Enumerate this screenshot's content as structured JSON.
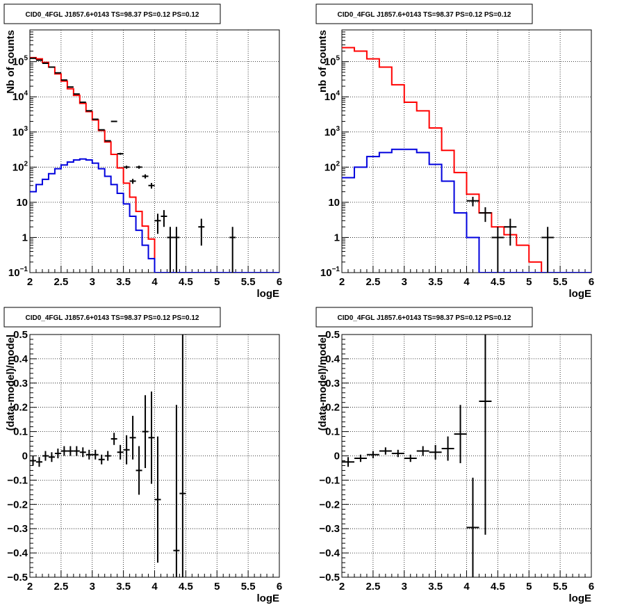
{
  "chart_data": [
    {
      "type": "line",
      "title": "CID0_4FGL J1857.6+0143 TS=98.37 PS=0.12 PS=0.12",
      "xlabel": "logE",
      "ylabel": "Nb of counts",
      "xlim": [
        2,
        6
      ],
      "ylim": [
        0.1,
        800000
      ],
      "yscale": "log",
      "grid": true,
      "xticks": [
        "2",
        "2.5",
        "3",
        "3.5",
        "4",
        "4.5",
        "5",
        "5.5",
        "6"
      ],
      "yticks": [
        {
          "v": 0.1,
          "label": "10",
          "sup": "−1"
        },
        {
          "v": 1,
          "label": "1",
          "sup": ""
        },
        {
          "v": 10,
          "label": "10",
          "sup": ""
        },
        {
          "v": 100,
          "label": "10",
          "sup": "2"
        },
        {
          "v": 1000,
          "label": "10",
          "sup": "3"
        },
        {
          "v": 10000,
          "label": "10",
          "sup": "4"
        },
        {
          "v": 100000,
          "label": "10",
          "sup": "5"
        }
      ],
      "bin_edges": [
        2.0,
        2.1,
        2.2,
        2.3,
        2.4,
        2.5,
        2.6,
        2.7,
        2.8,
        2.9,
        3.0,
        3.1,
        3.2,
        3.3,
        3.4,
        3.5,
        3.6,
        3.7,
        3.8,
        3.9,
        4.0,
        4.1,
        4.2,
        4.3,
        4.4,
        4.5,
        4.6,
        4.7,
        4.8,
        4.9,
        5.0,
        5.1,
        5.2,
        5.3,
        5.4,
        5.5,
        5.6,
        5.7,
        5.8,
        5.9,
        6.0
      ],
      "series": [
        {
          "role": "total",
          "color": "#ff0000",
          "values": [
            130000,
            120000,
            95000,
            70000,
            45000,
            28000,
            17000,
            11000,
            6500,
            3800,
            2200,
            1100,
            520,
            230,
            95,
            35,
            14,
            5.5,
            2.1,
            0.9
          ]
        },
        {
          "role": "component",
          "color": "#0000dd",
          "values": [
            20,
            32,
            45,
            65,
            90,
            115,
            140,
            160,
            170,
            160,
            130,
            90,
            55,
            32,
            18,
            9,
            4,
            1.6,
            0.6,
            0.25
          ]
        }
      ],
      "points": [
        {
          "x": 2.05,
          "y": 125000
        },
        {
          "x": 2.15,
          "y": 110000
        },
        {
          "x": 2.25,
          "y": 90000
        },
        {
          "x": 2.35,
          "y": 70000
        },
        {
          "x": 2.45,
          "y": 48000
        },
        {
          "x": 2.55,
          "y": 30000
        },
        {
          "x": 2.65,
          "y": 19000
        },
        {
          "x": 2.75,
          "y": 12000
        },
        {
          "x": 2.85,
          "y": 7000
        },
        {
          "x": 2.95,
          "y": 4000
        },
        {
          "x": 3.05,
          "y": 2300
        },
        {
          "x": 3.15,
          "y": 1150
        },
        {
          "x": 3.25,
          "y": 560
        },
        {
          "x": 3.35,
          "y": 2000
        },
        {
          "x": 3.45,
          "y": 240
        },
        {
          "x": 3.55,
          "y": 100
        },
        {
          "x": 3.65,
          "y": 40
        },
        {
          "x": 3.75,
          "y": 100
        },
        {
          "x": 3.85,
          "y": 55
        },
        {
          "x": 3.95,
          "y": 30
        },
        {
          "x": 4.05,
          "y": 3
        },
        {
          "x": 4.15,
          "y": 4
        },
        {
          "x": 4.25,
          "y": 1
        },
        {
          "x": 4.35,
          "y": 1
        },
        {
          "x": 4.75,
          "y": 2
        },
        {
          "x": 5.25,
          "y": 1
        }
      ],
      "ptxerr": 0.05
    },
    {
      "type": "line",
      "title": "CID0_4FGL J1857.6+0143 TS=98.37 PS=0.12 PS=0.12",
      "xlabel": "logE",
      "ylabel": "nb of counts",
      "xlim": [
        2,
        6
      ],
      "ylim": [
        0.1,
        800000
      ],
      "yscale": "log",
      "grid": true,
      "xticks": [
        "2",
        "2.5",
        "3",
        "3.5",
        "4",
        "4.5",
        "5",
        "5.5",
        "6"
      ],
      "yticks": [
        {
          "v": 0.1,
          "label": "10",
          "sup": "−1"
        },
        {
          "v": 1,
          "label": "1",
          "sup": ""
        },
        {
          "v": 10,
          "label": "10",
          "sup": ""
        },
        {
          "v": 100,
          "label": "10",
          "sup": "2"
        },
        {
          "v": 1000,
          "label": "10",
          "sup": "3"
        },
        {
          "v": 10000,
          "label": "10",
          "sup": "4"
        },
        {
          "v": 100000,
          "label": "10",
          "sup": "5"
        }
      ],
      "bin_edges": [
        2.0,
        2.2,
        2.4,
        2.6,
        2.8,
        3.0,
        3.2,
        3.4,
        3.6,
        3.8,
        4.0,
        4.2,
        4.4,
        4.6,
        4.8,
        5.0,
        5.2,
        5.4,
        5.6,
        5.8,
        6.0
      ],
      "series": [
        {
          "role": "total",
          "color": "#ff0000",
          "values": [
            250000,
            200000,
            120000,
            70000,
            22000,
            7000,
            4000,
            1300,
            300,
            70,
            17,
            5,
            2,
            1.2,
            0.6,
            0.2,
            0.1
          ]
        },
        {
          "role": "component",
          "color": "#0000dd",
          "values": [
            50,
            100,
            200,
            260,
            320,
            320,
            260,
            120,
            40,
            5,
            1,
            0.1
          ]
        }
      ],
      "points": [
        {
          "x": 4.1,
          "y": 11
        },
        {
          "x": 4.3,
          "y": 5
        },
        {
          "x": 4.5,
          "y": 1
        },
        {
          "x": 4.7,
          "y": 2
        },
        {
          "x": 5.3,
          "y": 1
        }
      ],
      "ptxerr": 0.1
    },
    {
      "type": "scatter",
      "title": "CID0_4FGL J1857.6+0143 TS=98.37 PS=0.12 PS=0.12",
      "xlabel": "logE",
      "ylabel": "(data-model)/model",
      "xlim": [
        2,
        6
      ],
      "ylim": [
        -0.5,
        0.5
      ],
      "yscale": "linear",
      "grid": true,
      "xticks": [
        "2",
        "2.5",
        "3",
        "3.5",
        "4",
        "4.5",
        "5",
        "5.5",
        "6"
      ],
      "yticks": [
        {
          "v": -0.5,
          "label": "−0.5",
          "sup": ""
        },
        {
          "v": -0.4,
          "label": "−0.4",
          "sup": ""
        },
        {
          "v": -0.3,
          "label": "−0.3",
          "sup": ""
        },
        {
          "v": -0.2,
          "label": "−0.2",
          "sup": ""
        },
        {
          "v": -0.1,
          "label": "−0.1",
          "sup": ""
        },
        {
          "v": 0,
          "label": "0",
          "sup": ""
        },
        {
          "v": 0.1,
          "label": "0.1",
          "sup": ""
        },
        {
          "v": 0.2,
          "label": "0.2",
          "sup": ""
        },
        {
          "v": 0.3,
          "label": "0.3",
          "sup": ""
        },
        {
          "v": 0.4,
          "label": "0.4",
          "sup": ""
        },
        {
          "v": 0.5,
          "label": "0.5",
          "sup": ""
        }
      ],
      "points": [
        {
          "x": 2.05,
          "y": -0.02,
          "e": 0.02
        },
        {
          "x": 2.15,
          "y": -0.025,
          "e": 0.02
        },
        {
          "x": 2.25,
          "y": 0.0,
          "e": 0.02
        },
        {
          "x": 2.35,
          "y": -0.005,
          "e": 0.02
        },
        {
          "x": 2.45,
          "y": 0.01,
          "e": 0.02
        },
        {
          "x": 2.55,
          "y": 0.02,
          "e": 0.02
        },
        {
          "x": 2.65,
          "y": 0.02,
          "e": 0.02
        },
        {
          "x": 2.75,
          "y": 0.02,
          "e": 0.02
        },
        {
          "x": 2.85,
          "y": 0.015,
          "e": 0.02
        },
        {
          "x": 2.95,
          "y": 0.005,
          "e": 0.02
        },
        {
          "x": 3.05,
          "y": 0.005,
          "e": 0.02
        },
        {
          "x": 3.15,
          "y": -0.015,
          "e": 0.02
        },
        {
          "x": 3.25,
          "y": 0.0,
          "e": 0.02
        },
        {
          "x": 3.35,
          "y": 0.07,
          "e": 0.025
        },
        {
          "x": 3.45,
          "y": 0.015,
          "e": 0.03
        },
        {
          "x": 3.55,
          "y": 0.025,
          "e": 0.06
        },
        {
          "x": 3.65,
          "y": 0.075,
          "e": 0.09
        },
        {
          "x": 3.75,
          "y": -0.06,
          "e": 0.1
        },
        {
          "x": 3.85,
          "y": 0.1,
          "e": 0.15
        },
        {
          "x": 3.95,
          "y": 0.075,
          "e": 0.19
        },
        {
          "x": 4.05,
          "y": -0.18,
          "e": 0.26
        },
        {
          "x": 4.35,
          "y": -0.39,
          "e": 0.6
        },
        {
          "x": 4.45,
          "y": -0.155,
          "e": 0.66
        }
      ],
      "ptxerr": 0.05
    },
    {
      "type": "scatter",
      "title": "CID0_4FGL J1857.6+0143 TS=98.37 PS=0.12 PS=0.12",
      "xlabel": "logE",
      "ylabel": "(data-model)/model",
      "xlim": [
        2,
        6
      ],
      "ylim": [
        -0.5,
        0.5
      ],
      "yscale": "linear",
      "grid": true,
      "xticks": [
        "2",
        "2.5",
        "3",
        "3.5",
        "4",
        "4.5",
        "5",
        "5.5",
        "6"
      ],
      "yticks": [
        {
          "v": -0.5,
          "label": "−0.5",
          "sup": ""
        },
        {
          "v": -0.4,
          "label": "−0.4",
          "sup": ""
        },
        {
          "v": -0.3,
          "label": "−0.3",
          "sup": ""
        },
        {
          "v": -0.2,
          "label": "−0.2",
          "sup": ""
        },
        {
          "v": -0.1,
          "label": "−0.1",
          "sup": ""
        },
        {
          "v": 0,
          "label": "0",
          "sup": ""
        },
        {
          "v": 0.1,
          "label": "0.1",
          "sup": ""
        },
        {
          "v": 0.2,
          "label": "0.2",
          "sup": ""
        },
        {
          "v": 0.3,
          "label": "0.3",
          "sup": ""
        },
        {
          "v": 0.4,
          "label": "0.4",
          "sup": ""
        },
        {
          "v": 0.5,
          "label": "0.5",
          "sup": ""
        }
      ],
      "points": [
        {
          "x": 2.1,
          "y": -0.025,
          "e": 0.02
        },
        {
          "x": 2.3,
          "y": -0.01,
          "e": 0.015
        },
        {
          "x": 2.5,
          "y": 0.005,
          "e": 0.015
        },
        {
          "x": 2.7,
          "y": 0.02,
          "e": 0.015
        },
        {
          "x": 2.9,
          "y": 0.01,
          "e": 0.015
        },
        {
          "x": 3.1,
          "y": -0.01,
          "e": 0.015
        },
        {
          "x": 3.3,
          "y": 0.02,
          "e": 0.02
        },
        {
          "x": 3.5,
          "y": 0.015,
          "e": 0.03
        },
        {
          "x": 3.7,
          "y": 0.03,
          "e": 0.05
        },
        {
          "x": 3.9,
          "y": 0.09,
          "e": 0.12
        },
        {
          "x": 4.1,
          "y": -0.295,
          "e": 0.205
        },
        {
          "x": 4.3,
          "y": 0.225,
          "e": 0.55
        }
      ],
      "ptxerr": 0.1
    }
  ]
}
